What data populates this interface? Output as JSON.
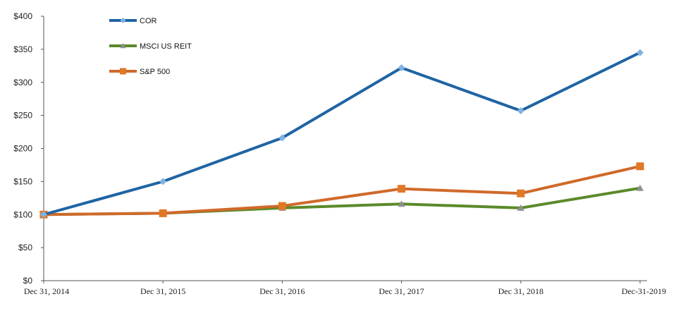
{
  "chart_data": {
    "type": "line",
    "title": "",
    "xlabel": "",
    "ylabel": "",
    "categories": [
      "Dec 31, 2014",
      "Dec 31, 2015",
      "Dec 31, 2016",
      "Dec 31, 2017",
      "Dec 31, 2018",
      "Dec-31-2019"
    ],
    "ylim": [
      0,
      400
    ],
    "yticks": [
      0,
      50,
      100,
      150,
      200,
      250,
      300,
      350,
      400
    ],
    "ytick_labels": [
      "$0",
      "$50",
      "$100",
      "$150",
      "$200",
      "$250",
      "$300",
      "$350",
      "$400"
    ],
    "grid": false,
    "legend_position": "top-left",
    "series": [
      {
        "name": "COR",
        "color": "#1f64a4",
        "marker_color": "#7fb2e0",
        "marker": "diamond",
        "values": [
          100,
          150,
          216,
          322,
          257,
          345
        ]
      },
      {
        "name": "MSCI US REIT",
        "color": "#5b8a2a",
        "marker_color": "#8f8f8f",
        "marker": "triangle",
        "values": [
          100,
          102,
          110,
          116,
          110,
          140
        ]
      },
      {
        "name": "S&P 500",
        "color": "#d0692a",
        "marker_color": "#e07826",
        "marker": "square",
        "values": [
          100,
          102,
          113,
          139,
          132,
          173
        ]
      }
    ]
  }
}
